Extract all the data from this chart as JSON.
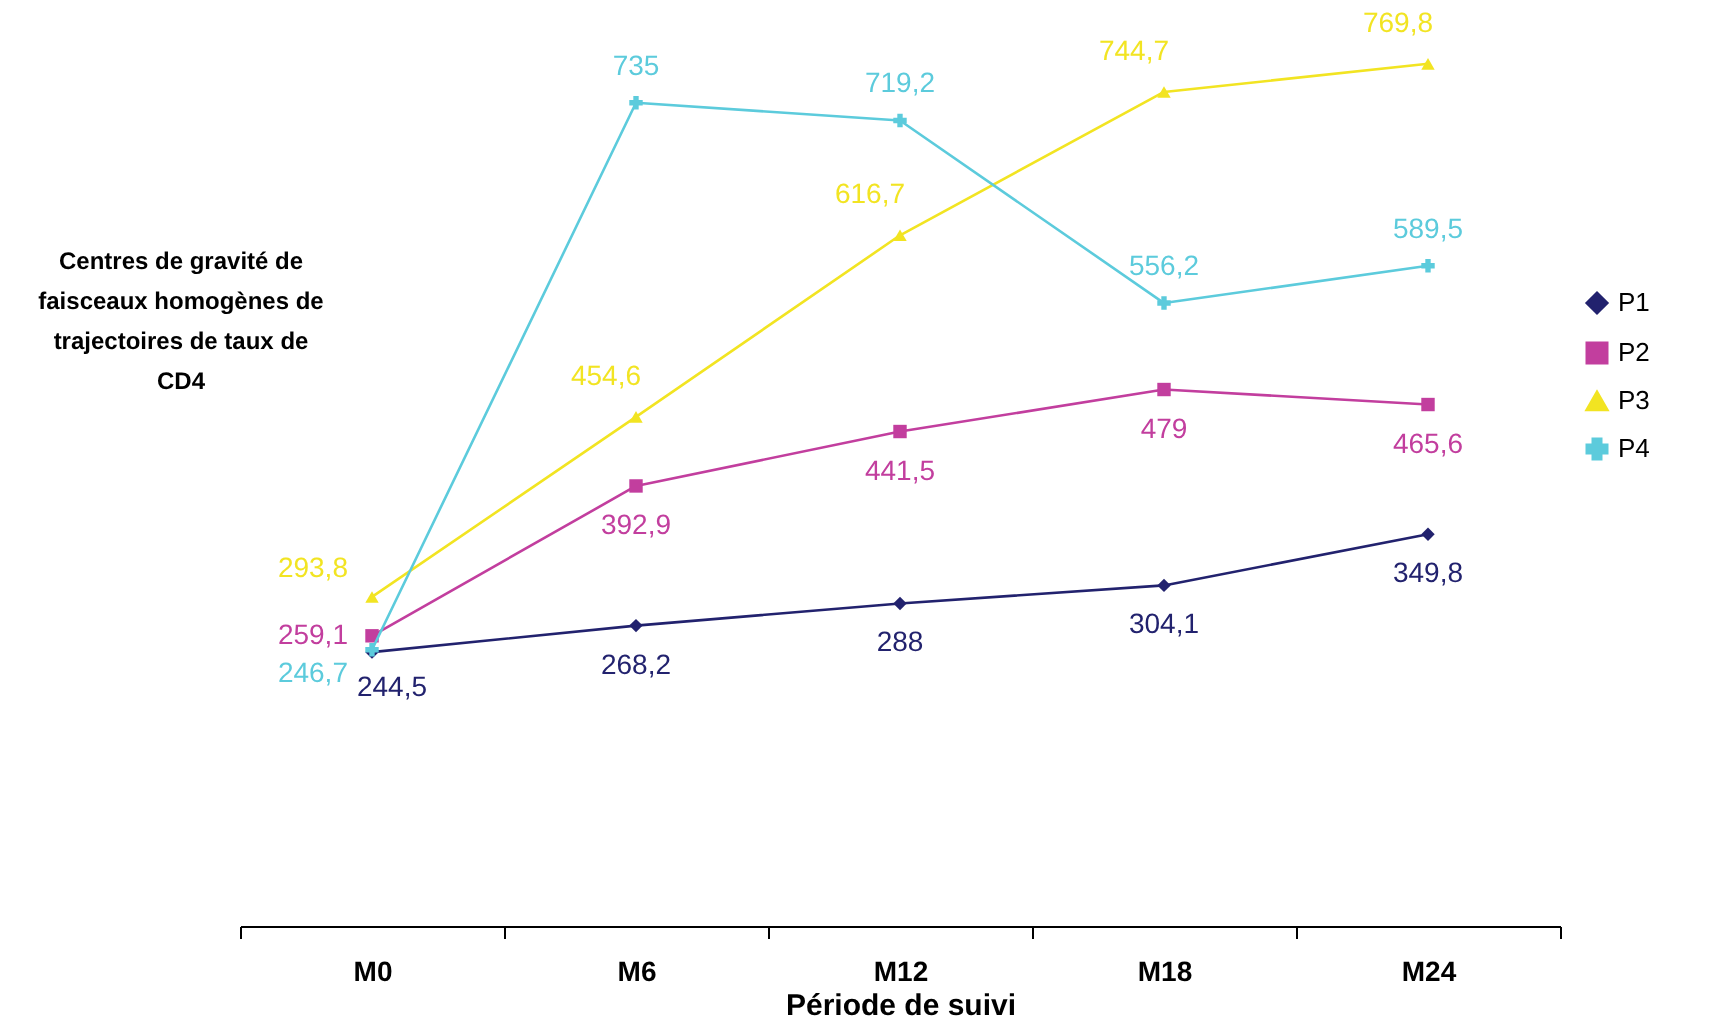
{
  "chart_data": {
    "type": "line",
    "xlabel": "Période de suivi",
    "ylabel": "Centres de gravité de faisceaux homogènes de trajectoires de taux de CD4",
    "categories": [
      "M0",
      "M6",
      "M12",
      "M18",
      "M24"
    ],
    "tick_labels": "x",
    "legend": "right",
    "grid": false,
    "series": [
      {
        "name": "P1",
        "color": "#22226e",
        "marker": "diamond",
        "values": [
          244.5,
          268.2,
          288,
          304.1,
          349.8
        ],
        "value_labels": [
          "244,5",
          "268,2",
          "288",
          "304,1",
          "349,8"
        ]
      },
      {
        "name": "P2",
        "color": "#c23e9e",
        "marker": "square",
        "values": [
          259.1,
          392.9,
          441.5,
          479,
          465.6
        ],
        "value_labels": [
          "259,1",
          "392,9",
          "441,5",
          "479",
          "465,6"
        ]
      },
      {
        "name": "P3",
        "color": "#f2e422",
        "marker": "triangle",
        "values": [
          293.8,
          454.6,
          616.7,
          744.7,
          769.8
        ],
        "value_labels": [
          "293,8",
          "454,6",
          "616,7",
          "744,7",
          "769,8"
        ]
      },
      {
        "name": "P4",
        "color": "#5ccbdc",
        "marker": "cross",
        "values": [
          246.7,
          735,
          719.2,
          556.2,
          589.5
        ],
        "value_labels": [
          "246,7",
          "735",
          "719,2",
          "556,2",
          "589,5"
        ]
      }
    ]
  }
}
